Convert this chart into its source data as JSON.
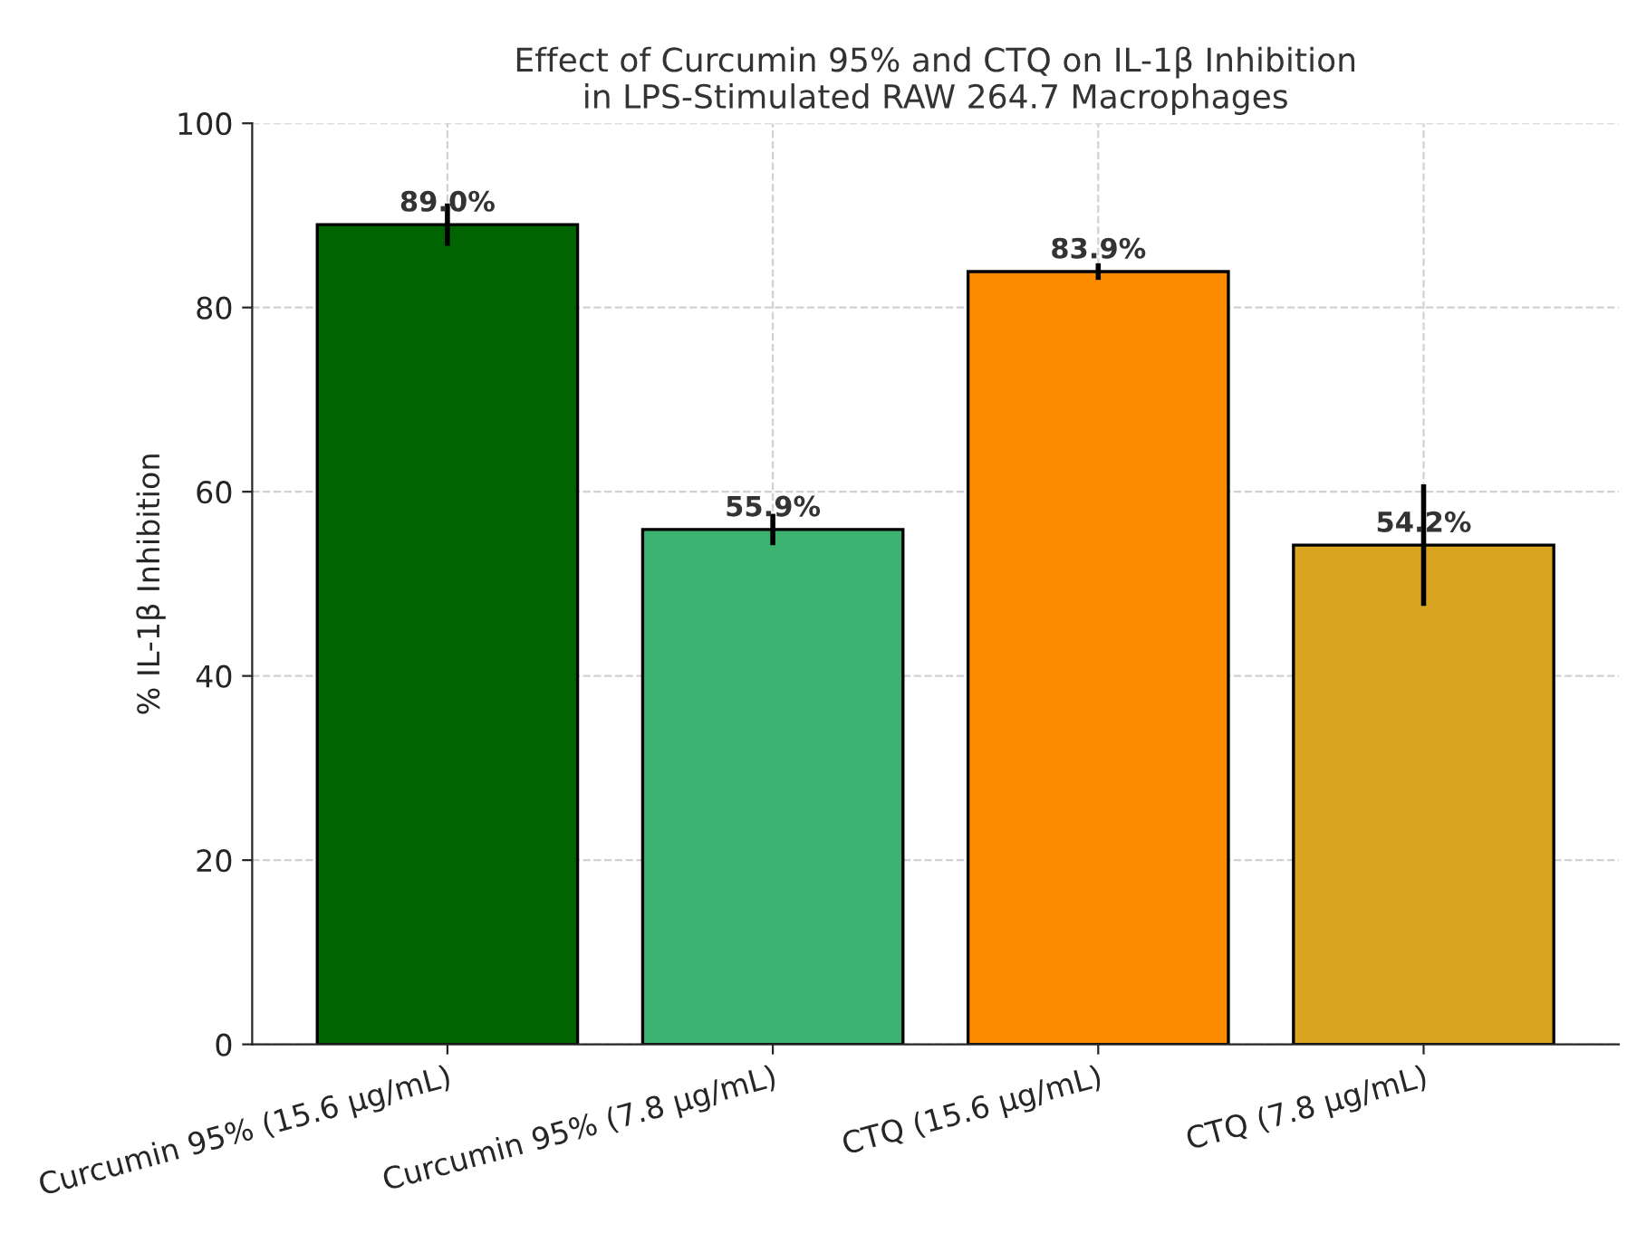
{
  "chart_data": {
    "type": "bar",
    "title": "Effect of Curcumin 95% and CTQ on IL-1β Inhibition\nin LPS-Stimulated RAW 264.7 Macrophages",
    "ylabel": "% IL-1β Inhibition",
    "categories": [
      "Curcumin 95% (15.6 µg/mL)",
      "Curcumin 95% (7.8 µg/mL)",
      "CTQ (15.6 µg/mL)",
      "CTQ (7.8 µg/mL)"
    ],
    "values": [
      89.0,
      55.9,
      83.9,
      54.2
    ],
    "errors": [
      2.3,
      1.7,
      0.9,
      6.6
    ],
    "value_labels": [
      "89.0%",
      "55.9%",
      "83.9%",
      "54.2%"
    ],
    "colors": [
      "#006400",
      "#3cb371",
      "#ff8c00",
      "#daa520"
    ],
    "ylim": [
      0,
      100
    ],
    "yticks": [
      0,
      20,
      40,
      60,
      80,
      100
    ],
    "grid": true
  }
}
